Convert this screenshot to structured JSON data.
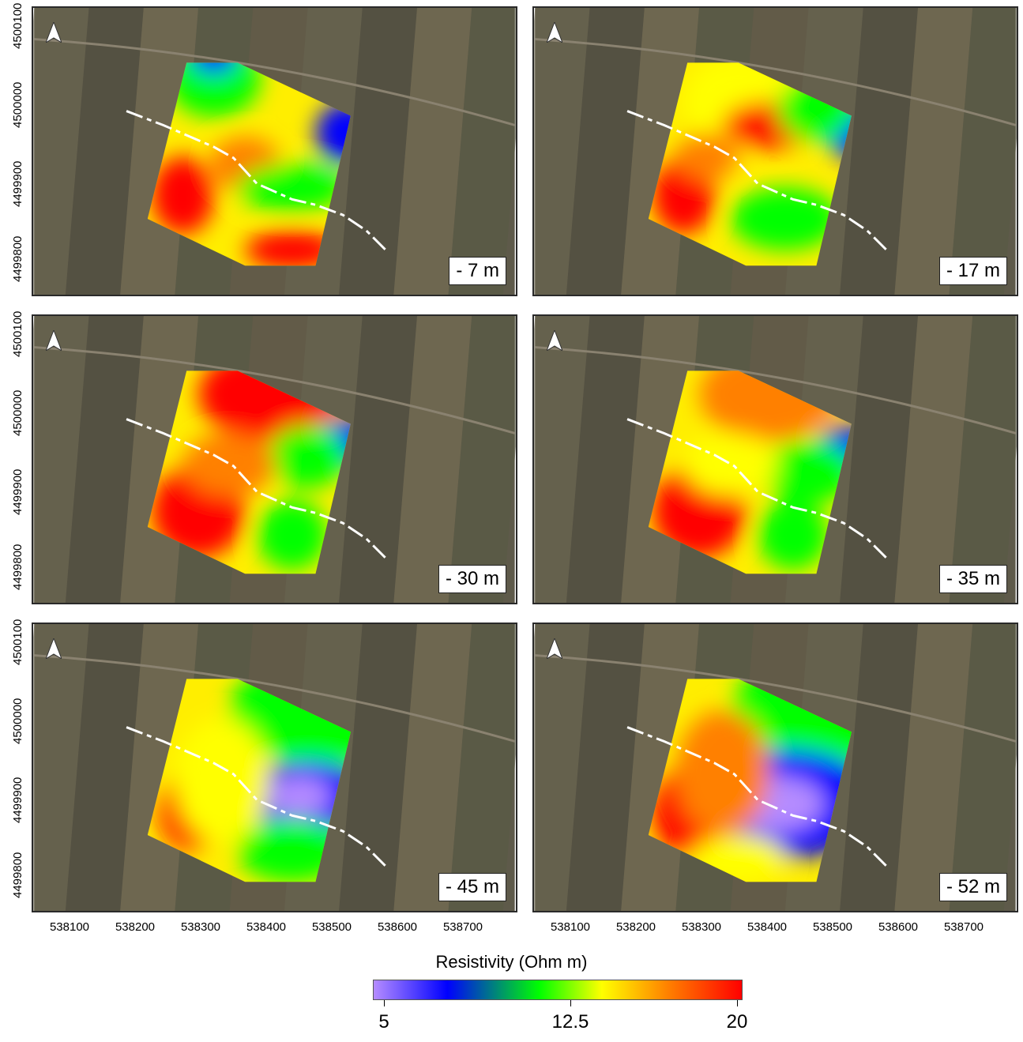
{
  "panels": [
    {
      "depth_label": "- 7 m"
    },
    {
      "depth_label": "- 17 m"
    },
    {
      "depth_label": "- 30 m"
    },
    {
      "depth_label": "- 35 m"
    },
    {
      "depth_label": "- 45 m"
    },
    {
      "depth_label": "- 52 m"
    }
  ],
  "y_ticks": [
    "4500100",
    "4500000",
    "4499900",
    "4499800"
  ],
  "x_ticks": [
    "538100",
    "538200",
    "538300",
    "538400",
    "538500",
    "538600",
    "538700"
  ],
  "colorbar": {
    "title": "Resistivity (Ohm m)",
    "min_label": "5",
    "mid_label": "12.5",
    "max_label": "20",
    "stops": [
      {
        "offset": 0.0,
        "color": "#b58cff"
      },
      {
        "offset": 0.2,
        "color": "#0000ff"
      },
      {
        "offset": 0.45,
        "color": "#00ff00"
      },
      {
        "offset": 0.62,
        "color": "#ffff00"
      },
      {
        "offset": 0.8,
        "color": "#ff8000"
      },
      {
        "offset": 1.0,
        "color": "#ff0000"
      }
    ]
  },
  "colors": {
    "satellite_base": "#5e5a4a",
    "fault_line": "#ffffff"
  }
}
